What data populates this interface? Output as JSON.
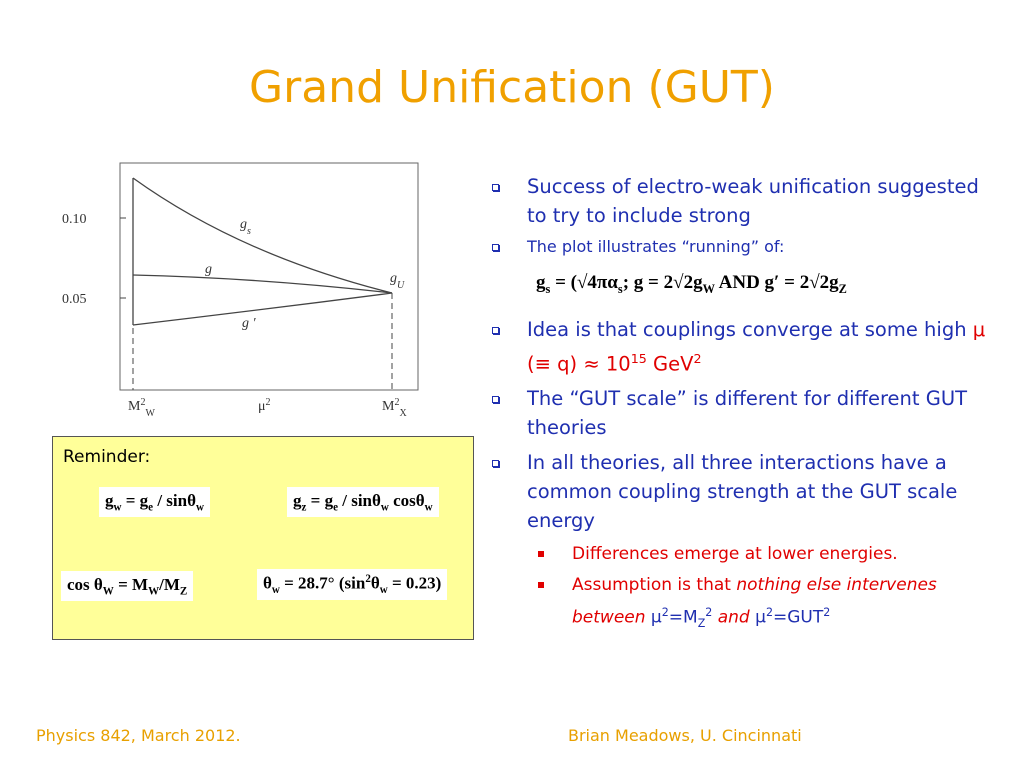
{
  "title": "Grand Unification (GUT)",
  "figure": {
    "y_labels": [
      "0.10",
      "0.05"
    ],
    "x_labels": [
      [
        {
          "t": "M"
        },
        {
          "t": "2",
          "s": "sup"
        },
        {
          "t": "W",
          "s": "sub"
        }
      ],
      [
        {
          "t": "μ"
        },
        {
          "t": "2",
          "s": "sup"
        }
      ],
      [
        {
          "t": "M"
        },
        {
          "t": "2",
          "s": "sup"
        },
        {
          "t": "X",
          "s": "sub"
        }
      ]
    ],
    "curve_labels": [
      [
        {
          "t": "g"
        },
        {
          "t": "s",
          "s": "sub"
        }
      ],
      [
        {
          "t": "g"
        }
      ],
      [
        {
          "t": "g ′"
        }
      ],
      [
        {
          "t": "g"
        },
        {
          "t": "U",
          "s": "sub"
        }
      ]
    ]
  },
  "reminder": {
    "heading": "Reminder:",
    "formulas": [
      [
        {
          "t": "g"
        },
        {
          "t": "w",
          "s": "sub"
        },
        {
          "t": " = g"
        },
        {
          "t": "e",
          "s": "sub"
        },
        {
          "t": " / sinθ"
        },
        {
          "t": "w",
          "s": "sub"
        }
      ],
      [
        {
          "t": "g"
        },
        {
          "t": "z",
          "s": "sub"
        },
        {
          "t": " = g"
        },
        {
          "t": "e",
          "s": "sub"
        },
        {
          "t": " / sinθ"
        },
        {
          "t": "w",
          "s": "sub"
        },
        {
          "t": " cosθ"
        },
        {
          "t": "w",
          "s": "sub"
        }
      ],
      [
        {
          "t": "cos θ"
        },
        {
          "t": "W",
          "s": "sub"
        },
        {
          "t": " = M"
        },
        {
          "t": "W",
          "s": "sub"
        },
        {
          "t": "/M"
        },
        {
          "t": "Z",
          "s": "sub"
        }
      ],
      [
        {
          "t": "θ"
        },
        {
          "t": "w",
          "s": "sub"
        },
        {
          "t": " = 28.7°   (sin"
        },
        {
          "t": "2",
          "s": "sup"
        },
        {
          "t": "θ"
        },
        {
          "t": "w",
          "s": "sub"
        },
        {
          "t": " = 0.23)"
        }
      ]
    ]
  },
  "bullets": [
    {
      "level": 1,
      "size": "large",
      "parts": [
        {
          "t": "Success of electro-weak unification suggested to try to include strong"
        }
      ]
    },
    {
      "level": 1,
      "size": "small",
      "parts": [
        {
          "t": "The plot illustrates “running” of:"
        }
      ]
    },
    {
      "level": 0,
      "size": "equation",
      "parts": [
        {
          "t": "g"
        },
        {
          "t": "s",
          "s": "sub"
        },
        {
          "t": " = (√4πα"
        },
        {
          "t": "s",
          "s": "sub"
        },
        {
          "t": ";   g = 2√2g"
        },
        {
          "t": "W",
          "s": "sub"
        },
        {
          "t": "  AND  g′ = 2√2g"
        },
        {
          "t": "Z",
          "s": "sub"
        }
      ]
    },
    {
      "level": 1,
      "size": "large",
      "parts": [
        {
          "t": "Idea is that couplings converge at some high "
        },
        {
          "t": "μ (≡ q) ≈ 10",
          "s": "red"
        },
        {
          "t": "15",
          "s": "red-sup"
        },
        {
          "t": " GeV",
          "s": "red"
        },
        {
          "t": "2",
          "s": "red-sup"
        }
      ]
    },
    {
      "level": 1,
      "size": "large",
      "parts": [
        {
          "t": "The “GUT scale” is different for different GUT theories"
        }
      ]
    },
    {
      "level": 1,
      "size": "large",
      "parts": [
        {
          "t": "In all theories, all three interactions have a common coupling strength at the GUT scale energy"
        }
      ]
    },
    {
      "level": 2,
      "size": "medium",
      "parts": [
        {
          "t": "Differences emerge at lower energies.",
          "s": "red"
        }
      ]
    },
    {
      "level": 2,
      "size": "medium",
      "parts": [
        {
          "t": "Assumption is that ",
          "s": "red"
        },
        {
          "t": "nothing else intervenes between ",
          "s": "red-italic"
        },
        {
          "t": "μ"
        },
        {
          "t": "2",
          "s": "sup"
        },
        {
          "t": "=M"
        },
        {
          "t": "Z",
          "s": "sub"
        },
        {
          "t": "2",
          "s": "sup"
        },
        {
          "t": " and ",
          "s": "red-italic"
        },
        {
          "t": "μ"
        },
        {
          "t": "2",
          "s": "sup"
        },
        {
          "t": "=GUT"
        },
        {
          "t": "2",
          "s": "sup"
        }
      ]
    }
  ],
  "footer": {
    "left": "Physics 842, March 2012.",
    "right": "Brian Meadows, U. Cincinnati"
  }
}
